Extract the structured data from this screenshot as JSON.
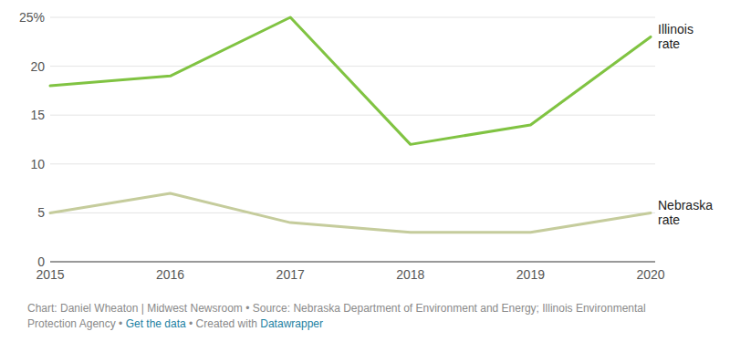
{
  "chart_data": {
    "type": "line",
    "x": [
      2015,
      2016,
      2017,
      2018,
      2019,
      2020
    ],
    "xlim": [
      2015,
      2020
    ],
    "xticks": [
      2015,
      2016,
      2017,
      2018,
      2019,
      2020
    ],
    "ylim": [
      0,
      25
    ],
    "yticks": [
      0,
      5,
      10,
      15,
      20,
      {
        "value": 25,
        "label": "25%"
      }
    ],
    "grid": true,
    "series": [
      {
        "name": "Illinois rate",
        "color": "#80c342",
        "values": [
          18,
          19,
          25,
          12,
          14,
          23
        ]
      },
      {
        "name": "Nebraska rate",
        "color": "#c5cc9c",
        "values": [
          5,
          7,
          4,
          3,
          3,
          5
        ]
      }
    ],
    "footer": [
      "Chart: Daniel Wheaton | Midwest Newsroom",
      "•",
      "Source: Nebraska Department of Environment and Energy; Illinois Environmental Protection Agency",
      "•",
      "Get the data",
      "•",
      "Created with",
      "Datawrapper"
    ]
  }
}
